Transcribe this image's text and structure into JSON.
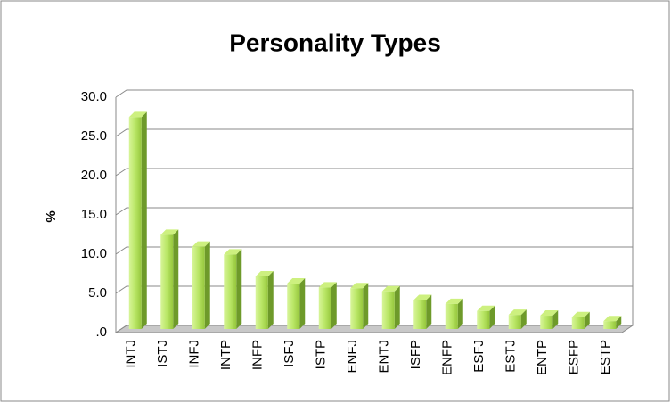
{
  "chart_data": {
    "type": "bar3d",
    "title": "Personality Types",
    "y_label": "%",
    "categories": [
      "INTJ",
      "ISTJ",
      "INFJ",
      "INTP",
      "INFP",
      "ISFJ",
      "ISTP",
      "ENFJ",
      "ENTJ",
      "ISFP",
      "ENFP",
      "ESFJ",
      "ESTJ",
      "ENTP",
      "ESFP",
      "ESTP"
    ],
    "values": [
      27.0,
      12.0,
      10.5,
      9.5,
      6.7,
      5.8,
      5.3,
      5.2,
      4.8,
      3.7,
      3.2,
      2.3,
      1.8,
      1.7,
      1.5,
      1.0
    ],
    "color": "#a8d84a",
    "ylim": [
      0,
      30
    ],
    "yticks": [
      {
        "value": 0,
        "label": ".0"
      },
      {
        "value": 5,
        "label": "5.0"
      },
      {
        "value": 10,
        "label": "10.0"
      },
      {
        "value": 15,
        "label": "15.0"
      },
      {
        "value": 20,
        "label": "20.0"
      },
      {
        "value": 25,
        "label": "25.0"
      },
      {
        "value": 30,
        "label": "30.0"
      }
    ],
    "grid": true
  }
}
